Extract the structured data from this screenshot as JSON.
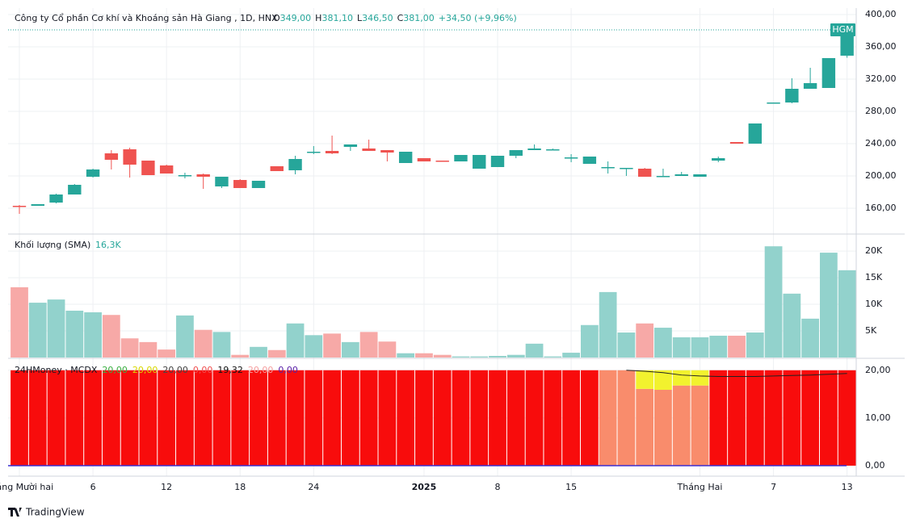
{
  "header": {
    "title": "Công ty Cổ phần Cơ khí và Khoáng sản Hà Giang , 1D, HNX",
    "ohlc": [
      {
        "key": "O",
        "text": "349,00"
      },
      {
        "key": "H",
        "text": "381,10"
      },
      {
        "key": "L",
        "text": "346,50"
      },
      {
        "key": "C",
        "text": "381,00"
      }
    ],
    "change": "+34,50 (+9,96%)"
  },
  "footer": {
    "brand": "TradingView"
  },
  "chart_data": [
    {
      "type": "candlestick",
      "last_label": "HGM",
      "up_color": "#26a69a",
      "down_color": "#ef5350",
      "grid": true,
      "categories": [
        "Tháng Mười hai",
        null,
        null,
        null,
        "6",
        null,
        null,
        null,
        "12",
        null,
        null,
        null,
        "18",
        null,
        null,
        null,
        "24",
        null,
        null,
        null,
        null,
        null,
        "2025",
        null,
        null,
        null,
        "8",
        null,
        null,
        null,
        "15",
        null,
        null,
        null,
        null,
        null,
        null,
        "Tháng Hai",
        null,
        null,
        null,
        "7",
        null,
        null,
        null,
        "13"
      ],
      "open": [
        163,
        163,
        167,
        177,
        199,
        228,
        233,
        219,
        213,
        200,
        202,
        187,
        195,
        185,
        212,
        207,
        229,
        231,
        236,
        234,
        232,
        216,
        222,
        219,
        218,
        209,
        211,
        225,
        232,
        232,
        222,
        215,
        210,
        209,
        209,
        199,
        200,
        199,
        219,
        242,
        240,
        290,
        291,
        308,
        309,
        349
      ],
      "high": [
        164,
        165,
        178,
        190,
        209,
        232,
        235,
        219,
        214,
        204,
        203,
        199,
        196,
        194,
        212,
        225,
        237,
        250,
        239,
        245,
        232,
        230,
        222,
        219,
        226,
        226,
        225,
        232,
        239,
        234,
        227,
        224,
        218,
        210,
        210,
        209,
        205,
        202,
        224,
        242,
        265,
        291,
        321,
        334,
        346,
        381.1
      ],
      "low": [
        153,
        163,
        166,
        177,
        198,
        208,
        198,
        201,
        203,
        197,
        184,
        185,
        185,
        185,
        206,
        202,
        227,
        227,
        231,
        231,
        218,
        216,
        218,
        218,
        218,
        209,
        211,
        222,
        232,
        232,
        217,
        215,
        203,
        200,
        199,
        199,
        200,
        199,
        217,
        240,
        240,
        290,
        290,
        308,
        309,
        346.5
      ],
      "close": [
        162,
        165,
        177,
        189,
        208,
        220,
        214,
        201,
        203,
        201,
        199,
        199,
        185,
        194,
        206,
        221,
        230,
        228,
        239,
        231,
        229,
        230,
        218,
        218,
        226,
        226,
        225,
        232,
        234,
        233,
        223,
        224,
        211,
        210,
        199,
        200,
        202,
        202,
        222,
        240,
        265,
        291,
        308,
        315,
        346,
        381
      ],
      "ylim": [
        128,
        408
      ],
      "yticks": [
        {
          "value": 160,
          "label": "160,00"
        },
        {
          "value": 200,
          "label": "200,00"
        },
        {
          "value": 240,
          "label": "240,00"
        },
        {
          "value": 280,
          "label": "280,00"
        },
        {
          "value": 320,
          "label": "320,00"
        },
        {
          "value": 360,
          "label": "360,00"
        },
        {
          "value": 400,
          "label": "400,00"
        }
      ]
    },
    {
      "type": "bar",
      "title": "Khối lượng (SMA)",
      "sma_text": "16,3K",
      "up_color": "#92d2cc",
      "down_color": "#f7a9a7",
      "values": [
        13200,
        10300,
        10900,
        8800,
        8500,
        8000,
        3600,
        2900,
        1500,
        7900,
        5200,
        4800,
        500,
        2000,
        1400,
        6400,
        4200,
        4500,
        2900,
        4800,
        3000,
        800,
        800,
        500,
        200,
        200,
        300,
        500,
        2600,
        200,
        900,
        6100,
        12300,
        4700,
        6400,
        5600,
        3800,
        3800,
        4100,
        4100,
        4700,
        20900,
        12000,
        7300,
        19700,
        16400
      ],
      "ylim": [
        0,
        23200
      ],
      "yticks": [
        {
          "value": 5000,
          "label": "5K"
        },
        {
          "value": 10000,
          "label": "10K"
        },
        {
          "value": 15000,
          "label": "15K"
        },
        {
          "value": 20000,
          "label": "20K"
        }
      ]
    },
    {
      "type": "stacked_bar",
      "title": "24HMoney · MCDX",
      "legend": [
        {
          "text": "20,00",
          "color": "#3cb043"
        },
        {
          "text": "20,00",
          "color": "#d8d800"
        },
        {
          "text": "20,00",
          "color": "#444444"
        },
        {
          "text": "0,00",
          "color": "#f05050"
        },
        {
          "text": "19,32",
          "color": "#111111"
        },
        {
          "text": "20,00",
          "color": "#f5a0a0"
        },
        {
          "text": "0,00",
          "color": "#5a1fa8"
        }
      ],
      "series": [
        {
          "colors": [
            "#f80c0c",
            "#f80c0c",
            "#f80c0c",
            "#f80c0c",
            "#f80c0c",
            "#f80c0c",
            "#f80c0c",
            "#f80c0c",
            "#f80c0c",
            "#f80c0c",
            "#f80c0c",
            "#f80c0c",
            "#f80c0c",
            "#f80c0c",
            "#f80c0c",
            "#f80c0c",
            "#f80c0c",
            "#f80c0c",
            "#f80c0c",
            "#f80c0c",
            "#f80c0c",
            "#f80c0c",
            "#f80c0c",
            "#f80c0c",
            "#f80c0c",
            "#f80c0c",
            "#f80c0c",
            "#f80c0c",
            "#f80c0c",
            "#f80c0c",
            "#f80c0c",
            "#f80c0c",
            "#f98c6c",
            "#f98c6c",
            "#f98c6c",
            "#f98c6c",
            "#f98c6c",
            "#f98c6c",
            "#f80c0c",
            "#f80c0c",
            "#f80c0c",
            "#f80c0c",
            "#f80c0c",
            "#f80c0c",
            "#f80c0c",
            "#f80c0c"
          ],
          "values": [
            20,
            20,
            20,
            20,
            20,
            20,
            20,
            20,
            20,
            20,
            20,
            20,
            20,
            20,
            20,
            20,
            20,
            20,
            20,
            20,
            20,
            20,
            20,
            20,
            20,
            20,
            20,
            20,
            20,
            20,
            20,
            20,
            20,
            20,
            16.1,
            15.9,
            16.8,
            16.8,
            20,
            20,
            20,
            20,
            20,
            20,
            20,
            20
          ]
        },
        {
          "color": "#f2f22e",
          "values": [
            0,
            0,
            0,
            0,
            0,
            0,
            0,
            0,
            0,
            0,
            0,
            0,
            0,
            0,
            0,
            0,
            0,
            0,
            0,
            0,
            0,
            0,
            0,
            0,
            0,
            0,
            0,
            0,
            0,
            0,
            0,
            0,
            0,
            0,
            3.9,
            4.1,
            3.2,
            3.2,
            0,
            0,
            0,
            0,
            0,
            0,
            0,
            0
          ]
        },
        {
          "type": "line",
          "color": "#222222",
          "values": [
            null,
            null,
            null,
            null,
            null,
            null,
            null,
            null,
            null,
            null,
            null,
            null,
            null,
            null,
            null,
            null,
            null,
            null,
            null,
            null,
            null,
            null,
            null,
            null,
            null,
            null,
            null,
            null,
            null,
            null,
            null,
            null,
            null,
            20,
            19.8,
            19.5,
            19.0,
            18.8,
            18.7,
            18.7,
            18.7,
            18.8,
            18.9,
            19.0,
            19.15,
            19.32
          ]
        }
      ],
      "ylim": [
        -2.2,
        22.5
      ],
      "yticks": [
        {
          "value": 0,
          "label": "0,00"
        },
        {
          "value": 10,
          "label": "10,00"
        },
        {
          "value": 20,
          "label": "20,00"
        }
      ]
    }
  ]
}
